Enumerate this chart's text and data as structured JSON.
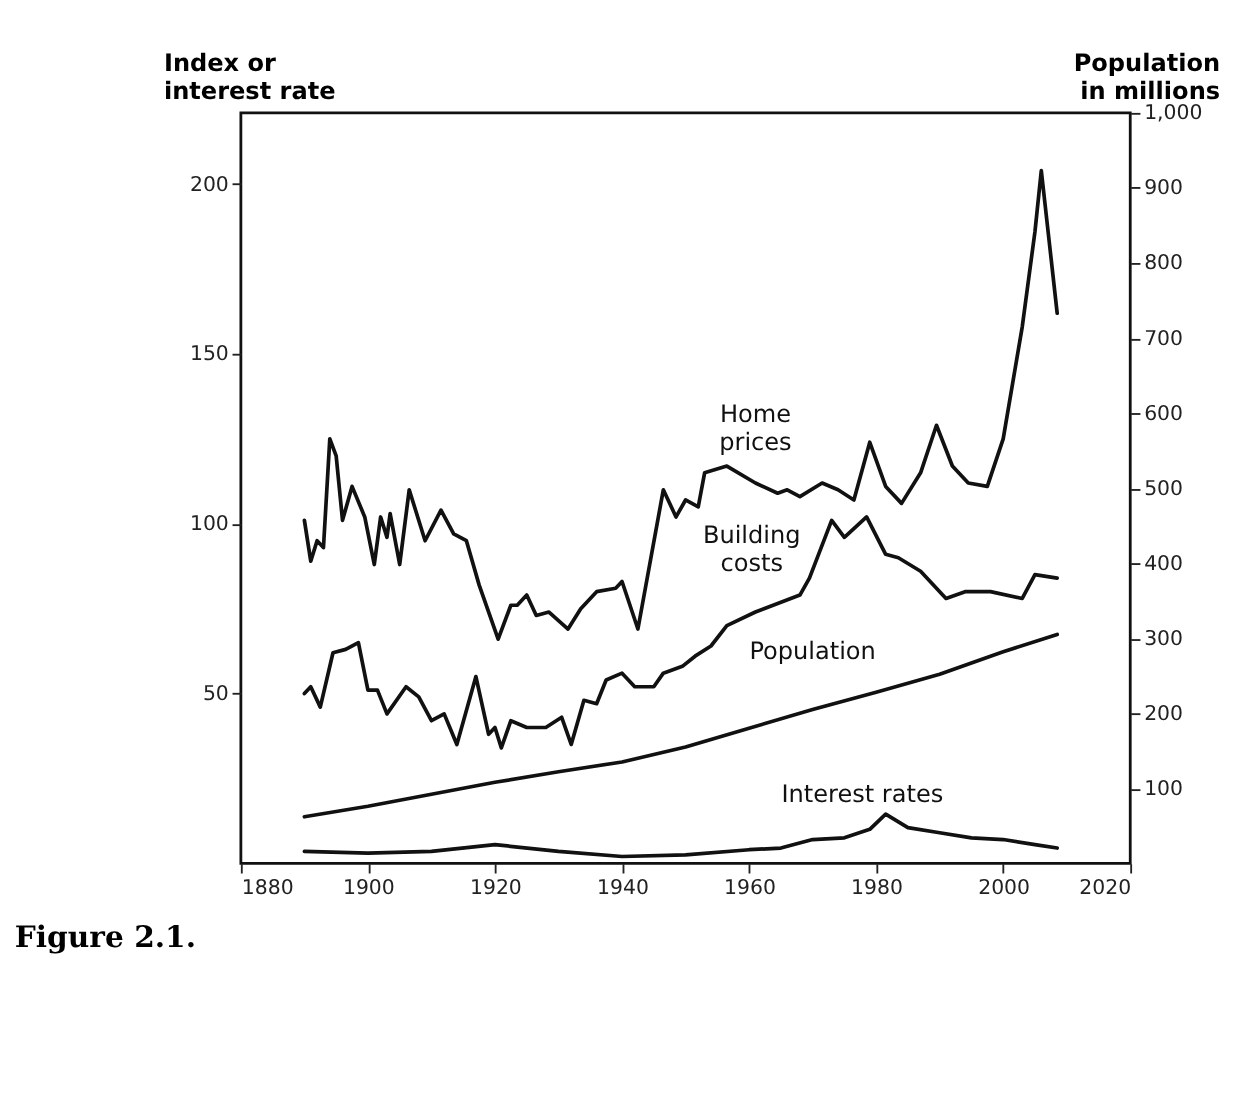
{
  "chart_data": {
    "type": "line",
    "ylabel": "Index or interest rate",
    "y2label": "Population in millions",
    "annotations": [
      "Figure 2.1."
    ],
    "xlim": [
      1880,
      2020
    ],
    "xticks": [
      1880,
      1900,
      1920,
      1940,
      1960,
      1980,
      2000,
      2020
    ],
    "ylim": [
      0,
      221
    ],
    "yticks": [
      50,
      100,
      150,
      200
    ],
    "y2lim": [
      0,
      1000
    ],
    "y2ticks": [
      100,
      200,
      300,
      400,
      500,
      600,
      700,
      800,
      900,
      {
        "value": 1000,
        "label": "1,000"
      }
    ],
    "grid": false,
    "marker": "none",
    "line_style": "solid",
    "series": [
      {
        "name": "Home prices",
        "color": "#111111",
        "x": [
          1890,
          1891,
          1892,
          1893,
          1894,
          1895,
          1896,
          1897.5,
          1899.5,
          1901,
          1902,
          1903,
          1903.5,
          1905,
          1906.5,
          1909,
          1911.5,
          1913.5,
          1915.5,
          1917.5,
          1920.5,
          1922.5,
          1923.5,
          1925,
          1926.5,
          1928.5,
          1931.5,
          1933.5,
          1936,
          1939,
          1940,
          1942.5,
          1946.5,
          1948.5,
          1950,
          1952,
          1953,
          1956.5,
          1961,
          1964.5,
          1966,
          1968,
          1971.5,
          1974,
          1976.5,
          1979,
          1981.5,
          1984,
          1987,
          1989.5,
          1992,
          1994.5,
          1997.5,
          2000,
          2003,
          2005,
          2006,
          2008.5
        ],
        "values": [
          101,
          89,
          95,
          93,
          125,
          120,
          101,
          111,
          102,
          88,
          102,
          96,
          103,
          88,
          110,
          95,
          104,
          97,
          95,
          82,
          66,
          76,
          76,
          79,
          73,
          74,
          69,
          75,
          80,
          81,
          83,
          69,
          110,
          102,
          107,
          105,
          115,
          117,
          112,
          109,
          110,
          108,
          112,
          110,
          107,
          124,
          111,
          106,
          115,
          129,
          117,
          112,
          111,
          125,
          158,
          186,
          204,
          162
        ]
      },
      {
        "name": "Building costs",
        "color": "#111111",
        "x": [
          1890,
          1891,
          1892.5,
          1894.5,
          1896.5,
          1898.5,
          1900,
          1901.5,
          1903,
          1906,
          1908,
          1910,
          1912,
          1914,
          1917,
          1919,
          1920,
          1921,
          1922.5,
          1925,
          1928,
          1930.5,
          1932,
          1934,
          1936,
          1937.5,
          1940,
          1942,
          1945,
          1946.5,
          1949.5,
          1951.5,
          1954,
          1956.5,
          1961,
          1968,
          1969.5,
          1973,
          1975,
          1978.5,
          1981.5,
          1983.5,
          1987,
          1991,
          1994,
          1998,
          2003,
          2005,
          2008.5
        ],
        "values": [
          50,
          52,
          46,
          62,
          63,
          65,
          51,
          51,
          44,
          52,
          49,
          42,
          44,
          35,
          55,
          38,
          40,
          34,
          42,
          40,
          40,
          43,
          35,
          48,
          47,
          54,
          56,
          52,
          52,
          56,
          58,
          61,
          64,
          70,
          74,
          79,
          84,
          101,
          96,
          102,
          91,
          90,
          86,
          78,
          80,
          80,
          78,
          85,
          84
        ]
      },
      {
        "name": "Population",
        "color": "#111111",
        "axis": "y2",
        "x": [
          1890,
          1900,
          1910,
          1920,
          1930,
          1940,
          1950,
          1960,
          1970,
          1980,
          1990,
          2000,
          2008.5
        ],
        "values": [
          62,
          76,
          92,
          108,
          122,
          135,
          155,
          180,
          205,
          228,
          252,
          282,
          305
        ]
      },
      {
        "name": "Interest rates",
        "color": "#111111",
        "x": [
          1890,
          1900,
          1910,
          1920,
          1930,
          1940,
          1950,
          1960,
          1965,
          1970,
          1975,
          1979,
          1981.5,
          1985,
          1990,
          1995,
          2000,
          2005,
          2008.5
        ],
        "values": [
          3.5,
          3,
          3.5,
          5.5,
          3.5,
          2,
          2.5,
          4,
          4.5,
          7,
          7.5,
          10,
          14.5,
          10.5,
          9,
          7.5,
          7,
          5.5,
          4.5
        ]
      }
    ]
  }
}
